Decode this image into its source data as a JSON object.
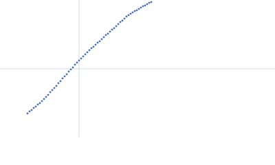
{
  "chart_data": {
    "type": "scatter",
    "x": [
      -75,
      -72,
      -69,
      -66,
      -63,
      -60,
      -57,
      -54,
      -51,
      -48,
      -45,
      -42,
      -39,
      -36,
      -33,
      -30,
      -27,
      -24,
      -21,
      -18,
      -15,
      -12,
      -9,
      -6,
      -3,
      0,
      3,
      6,
      9,
      12,
      15,
      18,
      21,
      24,
      27,
      30,
      33,
      36,
      39,
      42,
      45,
      48,
      51,
      54,
      57,
      60,
      63,
      66,
      69,
      72,
      75,
      78,
      81,
      84,
      87,
      90,
      93,
      96,
      99,
      102,
      105
    ],
    "series": [
      {
        "color": "#4a72b8",
        "values": [
          -65,
          -62,
          -60,
          -57,
          -55,
          -52,
          -50,
          -47,
          -44,
          -41,
          -38,
          -34,
          -31,
          -28,
          -25,
          -21,
          -18,
          -14,
          -11,
          -8,
          -4,
          -1,
          2,
          6,
          9,
          12,
          15,
          18,
          21,
          24,
          27,
          30,
          32,
          35,
          38,
          40,
          43,
          46,
          49,
          51,
          54,
          57,
          59,
          62,
          65,
          68,
          70,
          73,
          76,
          78,
          80,
          82,
          84,
          85,
          87,
          89,
          91,
          92,
          94,
          96,
          97
        ]
      }
    ],
    "xlim": [
      -115,
      285
    ],
    "ylim": [
      -100,
      100
    ],
    "axis_color": "#d3dae5"
  }
}
